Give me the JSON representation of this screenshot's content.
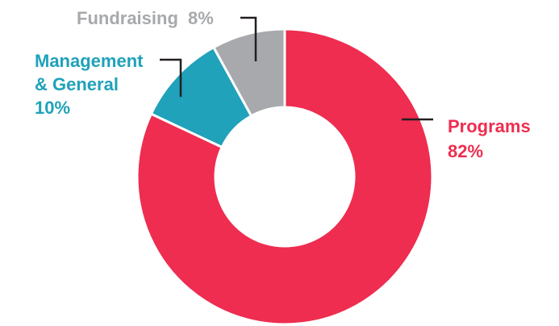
{
  "chart_data": {
    "type": "pie",
    "variant": "donut",
    "title": "",
    "slices": [
      {
        "key": "programs",
        "label": "Programs",
        "value": 82,
        "value_text": "82%",
        "color": "#EE2D50"
      },
      {
        "key": "management",
        "label_lines": [
          "Management",
          "& General"
        ],
        "value": 10,
        "value_text": "10%",
        "color": "#1FA2BA"
      },
      {
        "key": "fundraising",
        "label": "Fundraising",
        "value": 8,
        "value_text": "8%",
        "color": "#A7A9AC"
      }
    ],
    "start_angle": "12 o'clock",
    "direction": "clockwise",
    "legend": "none"
  },
  "colors": {
    "background": "#FFFFFF",
    "leader_line": "#231F20",
    "slice_separator": "#FFFFFF"
  }
}
